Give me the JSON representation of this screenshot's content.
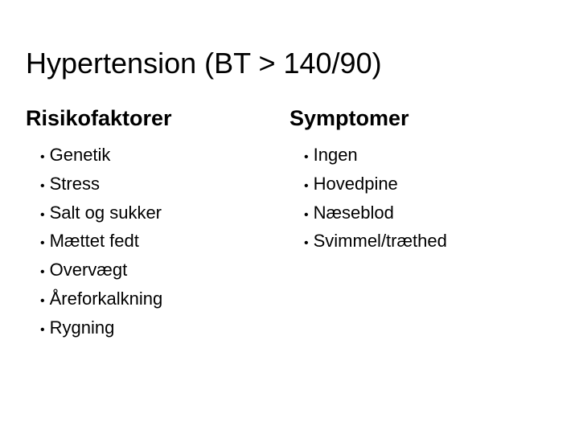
{
  "title": "Hypertension (BT > 140/90)",
  "columns": [
    {
      "heading": "Risikofaktorer",
      "items": [
        "Genetik",
        "Stress",
        "Salt og sukker",
        "Mættet fedt",
        "Overvægt",
        "Åreforkalkning",
        "Rygning"
      ]
    },
    {
      "heading": "Symptomer",
      "items": [
        "Ingen",
        "Hovedpine",
        "Næseblod",
        "Svimmel/træthed"
      ]
    }
  ],
  "style": {
    "background_color": "#ffffff",
    "text_color": "#000000",
    "title_fontsize": 36,
    "title_fontweight": 400,
    "heading_fontsize": 27,
    "heading_fontweight": 700,
    "item_fontsize": 22,
    "bullet_fontsize": 16,
    "font_family": "Arial",
    "slide_width": 720,
    "slide_height": 540,
    "column_layout": "two-column",
    "bullet_char": "•"
  }
}
